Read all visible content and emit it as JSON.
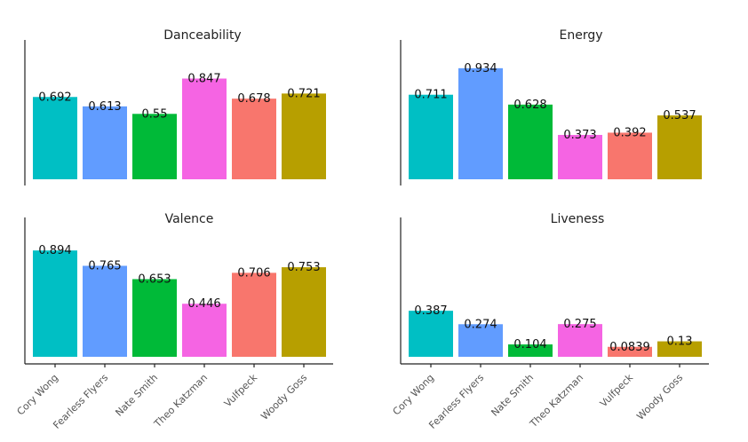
{
  "chart_data": [
    {
      "type": "bar",
      "title": "Danceability",
      "categories": [
        "Cory Wong",
        "Fearless Flyers",
        "Nate Smith",
        "Theo Katzman",
        "Vulfpeck",
        "Woody Goss"
      ],
      "values": [
        0.692,
        0.613,
        0.55,
        0.847,
        0.678,
        0.721
      ],
      "value_labels": [
        "0.692",
        "0.613",
        "0.55",
        "0.847",
        "0.678",
        "0.721"
      ],
      "xlabel": "",
      "ylabel": "",
      "grid": false
    },
    {
      "type": "bar",
      "title": "Energy",
      "categories": [
        "Cory Wong",
        "Fearless Flyers",
        "Nate Smith",
        "Theo Katzman",
        "Vulfpeck",
        "Woody Goss"
      ],
      "values": [
        0.711,
        0.934,
        0.628,
        0.373,
        0.392,
        0.537
      ],
      "value_labels": [
        "0.711",
        "0.934",
        "0.628",
        "0.373",
        "0.392",
        "0.537"
      ],
      "xlabel": "",
      "ylabel": "",
      "grid": false
    },
    {
      "type": "bar",
      "title": "Valence",
      "categories": [
        "Cory Wong",
        "Fearless Flyers",
        "Nate Smith",
        "Theo Katzman",
        "Vulfpeck",
        "Woody Goss"
      ],
      "values": [
        0.894,
        0.765,
        0.653,
        0.446,
        0.706,
        0.753
      ],
      "value_labels": [
        "0.894",
        "0.765",
        "0.653",
        "0.446",
        "0.706",
        "0.753"
      ],
      "xlabel": "",
      "ylabel": "",
      "grid": false
    },
    {
      "type": "bar",
      "title": "Liveness",
      "categories": [
        "Cory Wong",
        "Fearless Flyers",
        "Nate Smith",
        "Theo Katzman",
        "Vulfpeck",
        "Woody Goss"
      ],
      "values": [
        0.387,
        0.274,
        0.104,
        0.275,
        0.0839,
        0.13
      ],
      "value_labels": [
        "0.387",
        "0.274",
        "0.104",
        "0.275",
        "0.0839",
        "0.13"
      ],
      "xlabel": "",
      "ylabel": "",
      "grid": false
    }
  ],
  "colors": {
    "Cory Wong": "#00BFC4",
    "Fearless Flyers": "#619CFF",
    "Nate Smith": "#00BA38",
    "Theo Katzman": "#F564E3",
    "Vulfpeck": "#F8766D",
    "Woody Goss": "#B79F00"
  },
  "category_icons": {
    "Cory Wong": "cory-wong",
    "Fearless Flyers": "fearless-flyers",
    "Nate Smith": "nate-smith",
    "Theo Katzman": "theo-katzman",
    "Vulfpeck": "vulfpeck",
    "Woody Goss": "woody-goss"
  }
}
